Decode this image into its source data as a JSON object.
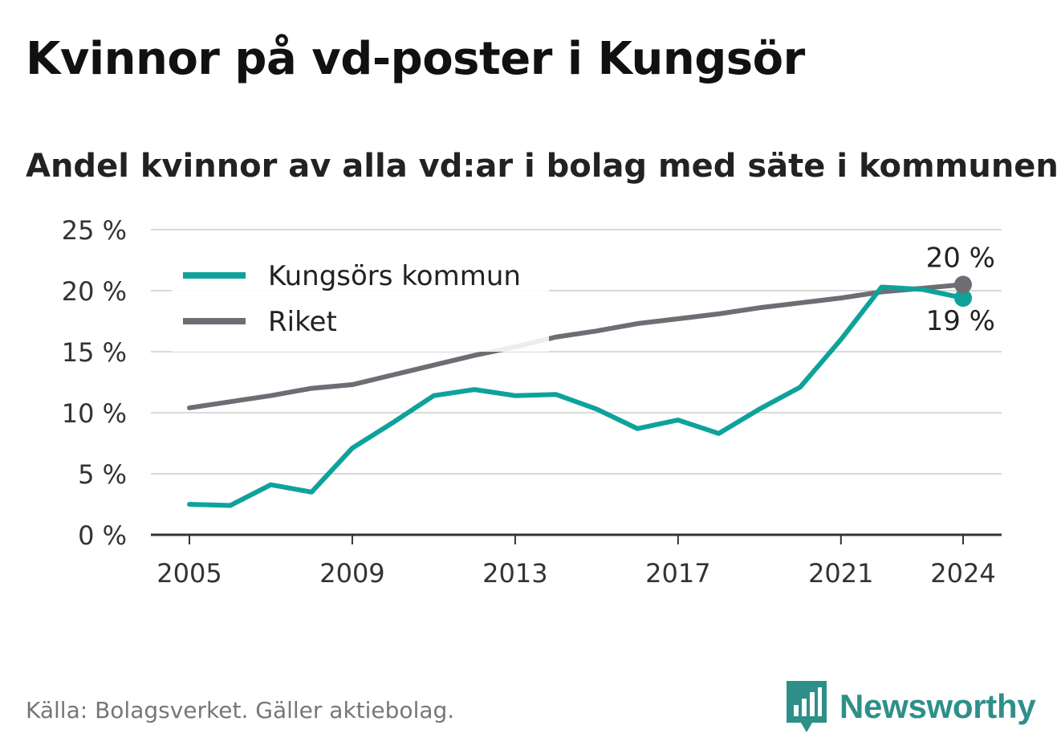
{
  "header": {
    "title": "Kvinnor på vd-poster i Kungsör",
    "subtitle": "Andel kvinnor av alla vd:ar i bolag med säte i kommunen"
  },
  "footer": {
    "source": "Källa: Bolagsverket. Gäller aktiebolag.",
    "brand": "Newsworthy",
    "brand_icon": "newsworthy-bar-chart-icon"
  },
  "colors": {
    "kungsor": "#0ea29b",
    "riket": "#6e6d74",
    "grid": "#d9d9d9",
    "axis": "#333333",
    "brand": "#2e8f89"
  },
  "chart_data": {
    "type": "line",
    "x": [
      2005,
      2006,
      2007,
      2008,
      2009,
      2010,
      2011,
      2012,
      2013,
      2014,
      2015,
      2016,
      2017,
      2018,
      2019,
      2020,
      2021,
      2022,
      2023,
      2024
    ],
    "x_ticks": [
      "2005",
      "2009",
      "2013",
      "2017",
      "2021",
      "2024"
    ],
    "y_ticks": [
      "0 %",
      "5 %",
      "10 %",
      "15 %",
      "20 %",
      "25 %"
    ],
    "ylim": [
      0,
      25
    ],
    "grid": true,
    "legend_position": "top-left",
    "series": [
      {
        "name": "Kungsörs kommun",
        "color": "#0ea29b",
        "values": [
          2.5,
          2.4,
          4.1,
          3.5,
          7.1,
          9.2,
          11.4,
          11.9,
          11.4,
          11.5,
          10.3,
          8.7,
          9.4,
          8.3,
          10.3,
          12.1,
          16.0,
          20.3,
          20.1,
          19.4
        ],
        "end_label": "19 %"
      },
      {
        "name": "Riket",
        "color": "#6e6d74",
        "values": [
          10.4,
          10.9,
          11.4,
          12.0,
          12.3,
          13.1,
          13.9,
          14.7,
          15.4,
          16.2,
          16.7,
          17.3,
          17.7,
          18.1,
          18.6,
          19.0,
          19.4,
          19.9,
          20.2,
          20.5
        ],
        "end_label": "20 %"
      }
    ]
  }
}
